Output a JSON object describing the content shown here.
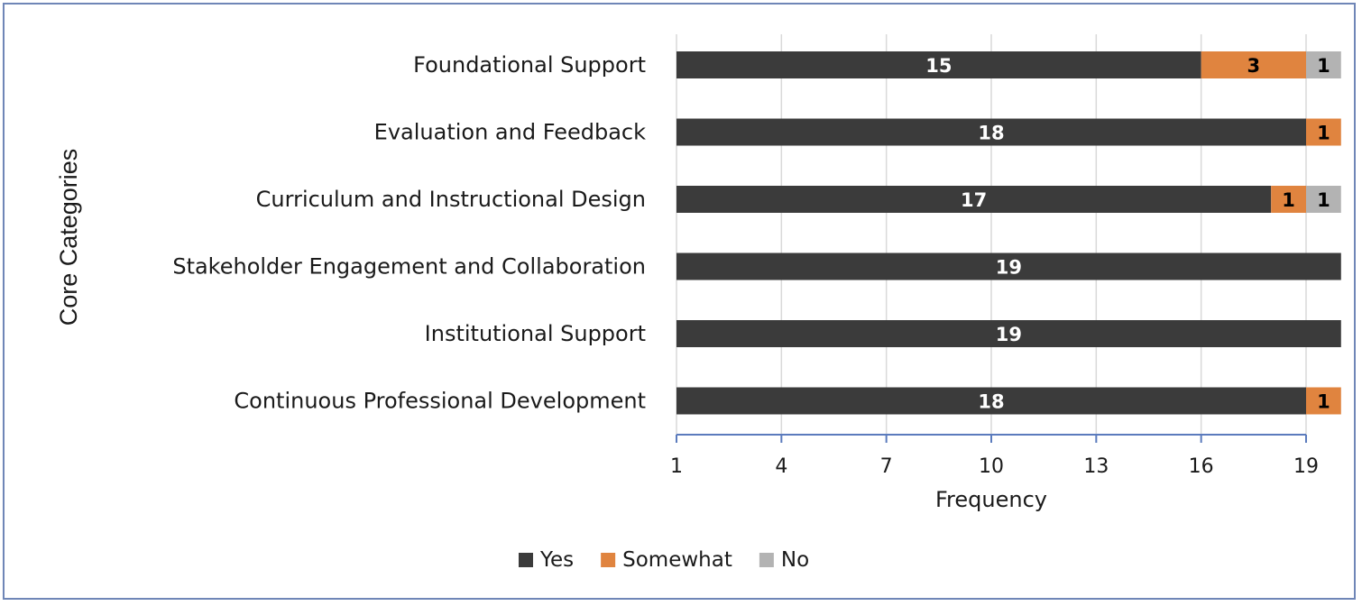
{
  "chart_data": {
    "type": "bar",
    "orientation": "horizontal",
    "stacked": true,
    "title": "",
    "xlabel": "Frequency",
    "ylabel": "Core Categories",
    "xlim": [
      1,
      19
    ],
    "xticks": [
      1,
      4,
      7,
      10,
      13,
      16,
      19
    ],
    "grid": true,
    "legend_position": "bottom",
    "categories": [
      "Foundational Support",
      "Evaluation and Feedback",
      "Curriculum and Instructional Design",
      "Stakeholder Engagement and Collaboration",
      "Institutional Support",
      "Continuous Professional Development"
    ],
    "series": [
      {
        "name": "Yes",
        "color": "#3b3b3b",
        "label_color": "#ffffff",
        "values": [
          15,
          18,
          17,
          19,
          19,
          18
        ]
      },
      {
        "name": "Somewhat",
        "color": "#e0843f",
        "label_color": "#000000",
        "values": [
          3,
          1,
          1,
          0,
          0,
          1
        ]
      },
      {
        "name": "No",
        "color": "#b3b3b3",
        "label_color": "#000000",
        "values": [
          1,
          0,
          1,
          0,
          0,
          0
        ]
      }
    ]
  }
}
